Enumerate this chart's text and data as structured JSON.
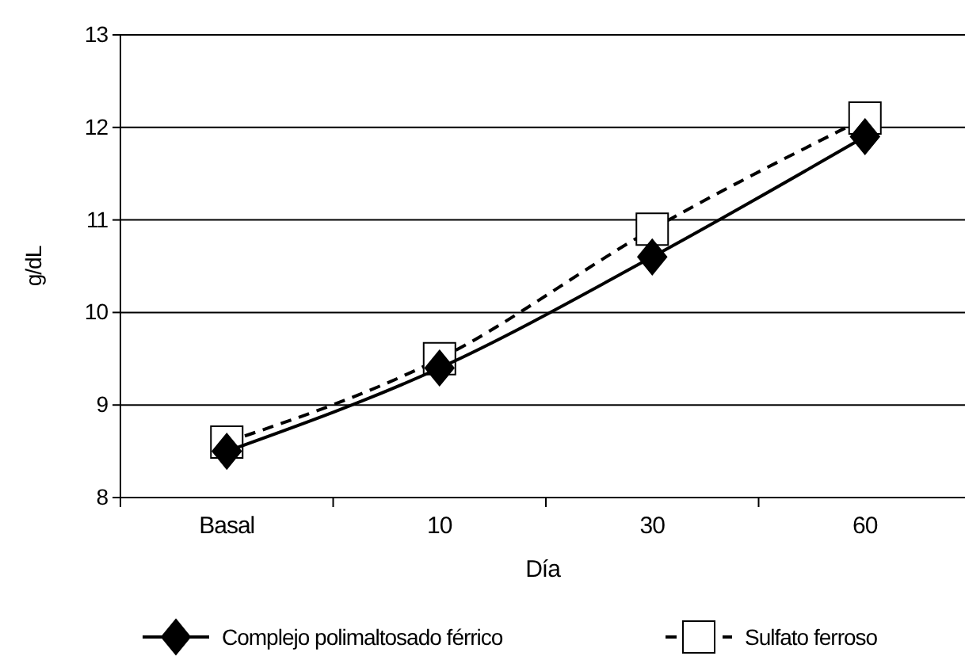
{
  "chart_data": {
    "type": "line",
    "xlabel": "Día",
    "ylabel": "g/dL",
    "categories": [
      "Basal",
      "10",
      "30",
      "60"
    ],
    "series": [
      {
        "name": "Complejo polimaltosado férrico",
        "color": "#000000",
        "values": [
          8.5,
          9.4,
          10.6,
          11.9
        ],
        "marker": "diamond",
        "line_style": "solid"
      },
      {
        "name": "Sulfato ferroso",
        "color": "#000000",
        "values": [
          8.6,
          9.5,
          10.9,
          12.1
        ],
        "marker": "square",
        "line_style": "dashed"
      }
    ],
    "ylim": [
      8,
      13
    ],
    "yticks": [
      8,
      9,
      10,
      11,
      12,
      13
    ],
    "grid": "y",
    "legend": "bottom"
  }
}
